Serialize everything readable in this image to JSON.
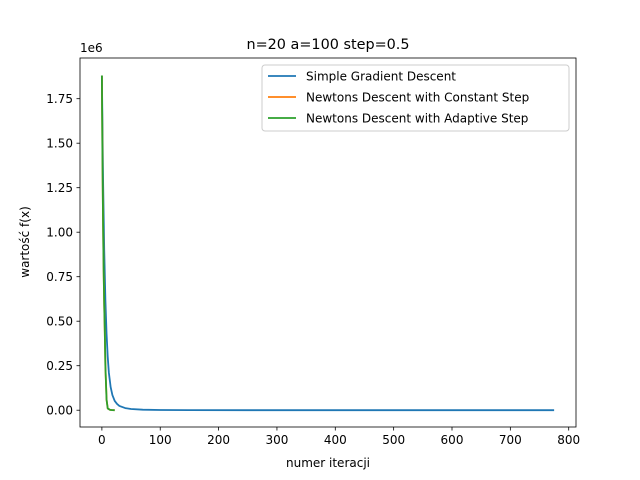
{
  "chart_data": {
    "type": "line",
    "title": "n=20 a=100 step=0.5",
    "xlabel": "numer iteracji",
    "ylabel": "wartość f(x)",
    "y_offset_label": "1e6",
    "xlim": [
      -37.5,
      812.5
    ],
    "ylim": [
      -0.0943,
      1.9786
    ],
    "x_ticks": [
      0,
      100,
      200,
      300,
      400,
      500,
      600,
      700,
      800
    ],
    "x_tick_labels": [
      "0",
      "100",
      "200",
      "300",
      "400",
      "500",
      "600",
      "700",
      "800"
    ],
    "y_ticks": [
      0.0,
      0.25,
      0.5,
      0.75,
      1.0,
      1.25,
      1.5,
      1.75
    ],
    "y_tick_labels": [
      "0.00",
      "0.25",
      "0.50",
      "0.75",
      "1.00",
      "1.25",
      "1.50",
      "1.75"
    ],
    "grid": false,
    "legend_position": "top-right",
    "series": [
      {
        "name": "Simple Gradient Descent",
        "color": "#1f77b4",
        "x": [
          0,
          2,
          4,
          6,
          8,
          10,
          12,
          15,
          18,
          22,
          26,
          30,
          40,
          50,
          70,
          100,
          150,
          250,
          400,
          600,
          775
        ],
        "y": [
          1.88,
          1.3,
          0.9,
          0.62,
          0.43,
          0.3,
          0.21,
          0.13,
          0.085,
          0.052,
          0.035,
          0.024,
          0.012,
          0.007,
          0.003,
          0.0012,
          0.0004,
          0.0001,
          3e-05,
          1e-05,
          0.0
        ]
      },
      {
        "name": "Newtons Descent with Constant Step",
        "color": "#ff7f0e",
        "x": [
          0,
          1,
          2,
          3,
          4,
          5,
          6,
          8,
          10,
          14,
          18,
          22
        ],
        "y": [
          1.88,
          1.41,
          1.06,
          0.79,
          0.59,
          0.44,
          0.25,
          0.06,
          0.01,
          0.002,
          0.0005,
          0.0
        ]
      },
      {
        "name": "Newtons Descent with Adaptive Step",
        "color": "#2ca02c",
        "x": [
          0,
          1,
          2,
          3,
          4,
          5,
          6,
          8,
          10,
          14,
          18,
          22
        ],
        "y": [
          1.88,
          1.41,
          1.06,
          0.79,
          0.59,
          0.44,
          0.25,
          0.06,
          0.01,
          0.002,
          0.0005,
          0.0
        ]
      }
    ]
  }
}
